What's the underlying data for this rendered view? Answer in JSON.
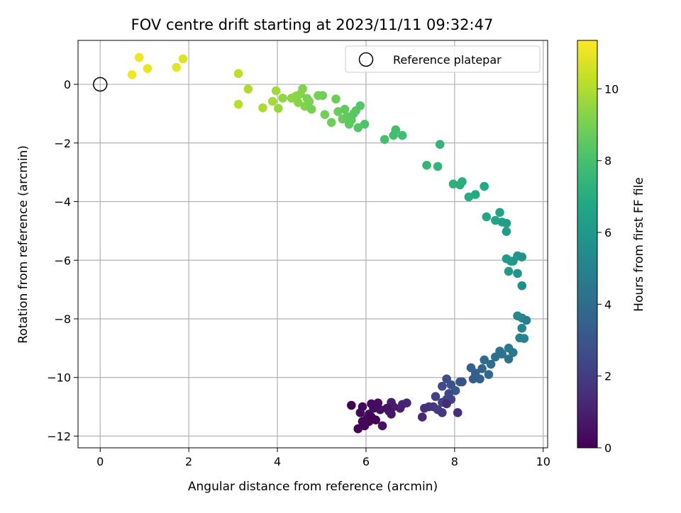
{
  "chart_data": {
    "type": "scatter",
    "title": "FOV centre drift starting at 2023/11/11 09:32:47",
    "xlabel": "Angular distance from reference (arcmin)",
    "ylabel": "Rotation from reference (arcmin)",
    "colorbar_label": "Hours from first FF file",
    "xlim": [
      -0.5,
      10.1
    ],
    "ylim": [
      -12.4,
      1.5
    ],
    "clim": [
      0,
      11.35
    ],
    "colormap": "viridis",
    "grid": true,
    "legend_position": "top-right",
    "x_ticks": [
      0,
      2,
      4,
      6,
      8,
      10
    ],
    "x_tick_labels": [
      "0",
      "2",
      "4",
      "6",
      "8",
      "10"
    ],
    "y_ticks": [
      0,
      -2,
      -4,
      -6,
      -8,
      -10,
      -12
    ],
    "y_tick_labels": [
      "0",
      "−2",
      "−4",
      "−6",
      "−8",
      "−10",
      "−12"
    ],
    "colorbar_ticks": [
      0,
      2,
      4,
      6,
      8,
      10
    ],
    "colorbar_tick_labels": [
      "0",
      "2",
      "4",
      "6",
      "8",
      "10"
    ],
    "reference": {
      "label": "Reference platepar",
      "x": 0,
      "y": 0
    },
    "points": [
      [
        0.72,
        0.33,
        11.2
      ],
      [
        0.88,
        0.92,
        11.1
      ],
      [
        1.07,
        0.54,
        11.0
      ],
      [
        1.72,
        0.58,
        10.9
      ],
      [
        1.87,
        0.87,
        10.8
      ],
      [
        3.12,
        0.37,
        10.2
      ],
      [
        3.12,
        -0.68,
        10.1
      ],
      [
        3.34,
        -0.16,
        10.0
      ],
      [
        3.67,
        -0.8,
        9.9
      ],
      [
        3.89,
        -0.58,
        9.8
      ],
      [
        3.97,
        -0.22,
        9.7
      ],
      [
        4.02,
        -0.82,
        9.6
      ],
      [
        4.12,
        -0.47,
        9.5
      ],
      [
        4.32,
        -0.47,
        9.4
      ],
      [
        4.42,
        -0.4,
        9.4
      ],
      [
        4.47,
        -0.62,
        9.3
      ],
      [
        4.52,
        -0.33,
        9.3
      ],
      [
        4.57,
        -0.15,
        9.2
      ],
      [
        4.62,
        -0.75,
        9.2
      ],
      [
        4.67,
        -0.48,
        9.1
      ],
      [
        4.72,
        -0.58,
        9.1
      ],
      [
        4.77,
        -0.85,
        9.0
      ],
      [
        4.92,
        -0.38,
        9.0
      ],
      [
        5.02,
        -0.38,
        8.9
      ],
      [
        5.07,
        -1.03,
        8.9
      ],
      [
        5.22,
        -1.3,
        8.8
      ],
      [
        5.32,
        -0.5,
        8.8
      ],
      [
        5.37,
        -0.93,
        8.7
      ],
      [
        5.47,
        -1.18,
        8.7
      ],
      [
        5.52,
        -0.85,
        8.6
      ],
      [
        5.57,
        -1.1,
        8.6
      ],
      [
        5.62,
        -1.36,
        8.5
      ],
      [
        5.67,
        -1.22,
        8.5
      ],
      [
        5.72,
        -1.0,
        8.4
      ],
      [
        5.77,
        -0.9,
        8.4
      ],
      [
        5.82,
        -1.48,
        8.3
      ],
      [
        5.87,
        -0.73,
        8.3
      ],
      [
        5.97,
        -1.36,
        8.2
      ],
      [
        6.42,
        -1.88,
        8.0
      ],
      [
        6.62,
        -1.74,
        7.9
      ],
      [
        6.67,
        -1.55,
        7.9
      ],
      [
        6.82,
        -1.74,
        7.8
      ],
      [
        7.37,
        -2.76,
        7.5
      ],
      [
        7.62,
        -2.8,
        7.4
      ],
      [
        7.67,
        -2.05,
        7.4
      ],
      [
        7.97,
        -3.4,
        7.2
      ],
      [
        8.12,
        -3.43,
        7.1
      ],
      [
        8.17,
        -3.32,
        7.1
      ],
      [
        8.32,
        -3.84,
        7.0
      ],
      [
        8.47,
        -3.76,
        6.9
      ],
      [
        8.67,
        -3.48,
        6.8
      ],
      [
        8.72,
        -4.52,
        6.7
      ],
      [
        8.92,
        -4.64,
        6.6
      ],
      [
        9.02,
        -4.37,
        6.5
      ],
      [
        9.07,
        -4.7,
        6.4
      ],
      [
        9.17,
        -4.74,
        6.3
      ],
      [
        9.17,
        -5.02,
        6.3
      ],
      [
        9.17,
        -5.95,
        6.2
      ],
      [
        9.22,
        -6.38,
        6.1
      ],
      [
        9.27,
        -6.03,
        6.0
      ],
      [
        9.32,
        -6.03,
        6.0
      ],
      [
        9.42,
        -5.85,
        5.9
      ],
      [
        9.42,
        -6.45,
        5.8
      ],
      [
        9.52,
        -5.89,
        5.7
      ],
      [
        9.52,
        -6.87,
        5.6
      ],
      [
        9.42,
        -7.9,
        5.3
      ],
      [
        9.52,
        -7.97,
        5.2
      ],
      [
        9.52,
        -8.32,
        5.1
      ],
      [
        9.47,
        -8.65,
        5.0
      ],
      [
        9.57,
        -8.67,
        4.9
      ],
      [
        9.62,
        -8.05,
        4.8
      ],
      [
        9.22,
        -9.0,
        4.6
      ],
      [
        9.32,
        -9.15,
        4.5
      ],
      [
        9.02,
        -9.1,
        4.4
      ],
      [
        9.07,
        -9.2,
        4.3
      ],
      [
        9.22,
        -9.37,
        4.2
      ],
      [
        8.92,
        -9.3,
        4.1
      ],
      [
        8.82,
        -9.55,
        4.0
      ],
      [
        8.67,
        -9.4,
        3.9
      ],
      [
        8.77,
        -9.9,
        3.8
      ],
      [
        8.62,
        -9.7,
        3.7
      ],
      [
        8.47,
        -9.85,
        3.6
      ],
      [
        8.37,
        -9.67,
        3.5
      ],
      [
        8.57,
        -10.05,
        3.4
      ],
      [
        8.42,
        -10.05,
        3.3
      ],
      [
        8.12,
        -10.15,
        3.1
      ],
      [
        8.02,
        -10.45,
        3.0
      ],
      [
        8.17,
        -10.15,
        2.9
      ],
      [
        7.92,
        -10.25,
        2.8
      ],
      [
        7.82,
        -10.05,
        2.7
      ],
      [
        7.72,
        -10.3,
        2.6
      ],
      [
        7.87,
        -10.55,
        2.5
      ],
      [
        7.82,
        -10.75,
        2.4
      ],
      [
        7.92,
        -10.75,
        2.3
      ],
      [
        7.72,
        -10.85,
        2.2
      ],
      [
        7.57,
        -10.65,
        2.1
      ],
      [
        7.62,
        -11.1,
        2.0
      ],
      [
        7.52,
        -11.0,
        1.9
      ],
      [
        7.72,
        -11.2,
        1.8
      ],
      [
        7.42,
        -11.0,
        1.7
      ],
      [
        7.32,
        -11.05,
        1.6
      ],
      [
        8.07,
        -11.2,
        1.5
      ],
      [
        7.82,
        -10.9,
        1.4
      ],
      [
        7.27,
        -11.35,
        1.3
      ],
      [
        6.92,
        -10.87,
        1.2
      ],
      [
        6.82,
        -10.92,
        1.1
      ],
      [
        6.77,
        -11.05,
        1.0
      ],
      [
        6.57,
        -10.85,
        0.9
      ],
      [
        6.62,
        -11.0,
        0.8
      ],
      [
        6.52,
        -11.15,
        0.7
      ],
      [
        6.57,
        -11.25,
        0.7
      ],
      [
        6.47,
        -11.05,
        0.6
      ],
      [
        6.32,
        -11.1,
        0.5
      ],
      [
        6.37,
        -11.65,
        0.5
      ],
      [
        6.27,
        -10.87,
        0.4
      ],
      [
        6.17,
        -11.05,
        0.4
      ],
      [
        6.12,
        -10.9,
        0.3
      ],
      [
        6.07,
        -11.25,
        0.3
      ],
      [
        6.02,
        -11.4,
        0.3
      ],
      [
        6.07,
        -11.5,
        0.2
      ],
      [
        5.92,
        -11.0,
        0.2
      ],
      [
        5.87,
        -11.2,
        0.2
      ],
      [
        5.92,
        -11.5,
        0.1
      ],
      [
        5.97,
        -11.65,
        0.1
      ],
      [
        5.82,
        -11.75,
        0.1
      ],
      [
        5.67,
        -10.95,
        0.05
      ],
      [
        6.12,
        -11.35,
        0.05
      ],
      [
        6.22,
        -11.45,
        0.0
      ]
    ]
  }
}
